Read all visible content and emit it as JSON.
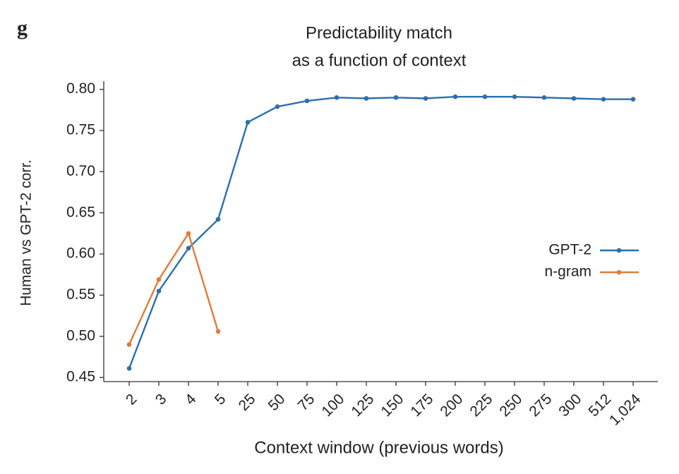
{
  "panel_label": "g",
  "chart_data": {
    "type": "line",
    "title": [
      "Predictability match",
      "as a function of context"
    ],
    "xlabel": "Context window (previous words)",
    "ylabel": "Human vs GPT-2 corr.",
    "categories": [
      "2",
      "3",
      "4",
      "5",
      "25",
      "50",
      "75",
      "100",
      "125",
      "150",
      "175",
      "200",
      "225",
      "250",
      "275",
      "300",
      "512",
      "1,024"
    ],
    "series": [
      {
        "name": "GPT-2",
        "color": "#2c6fad",
        "values": [
          0.461,
          0.555,
          0.607,
          0.642,
          0.76,
          0.779,
          0.786,
          0.79,
          0.789,
          0.79,
          0.789,
          0.791,
          0.791,
          0.791,
          0.79,
          0.789,
          0.788,
          0.788
        ]
      },
      {
        "name": "n-gram",
        "color": "#e07b39",
        "values": [
          0.49,
          0.569,
          0.625,
          0.506,
          null,
          null,
          null,
          null,
          null,
          null,
          null,
          null,
          null,
          null,
          null,
          null,
          null,
          null
        ]
      }
    ],
    "ylim": [
      0.445,
      0.81
    ],
    "yticks": [
      0.45,
      {
        "value": 0.5,
        "label": "0.50"
      },
      0.55,
      {
        "value": 0.6,
        "label": "0.60"
      },
      0.65,
      {
        "value": 0.7,
        "label": "0.70"
      },
      0.75,
      {
        "value": 0.8,
        "label": "0.80"
      }
    ],
    "legend": "right"
  }
}
